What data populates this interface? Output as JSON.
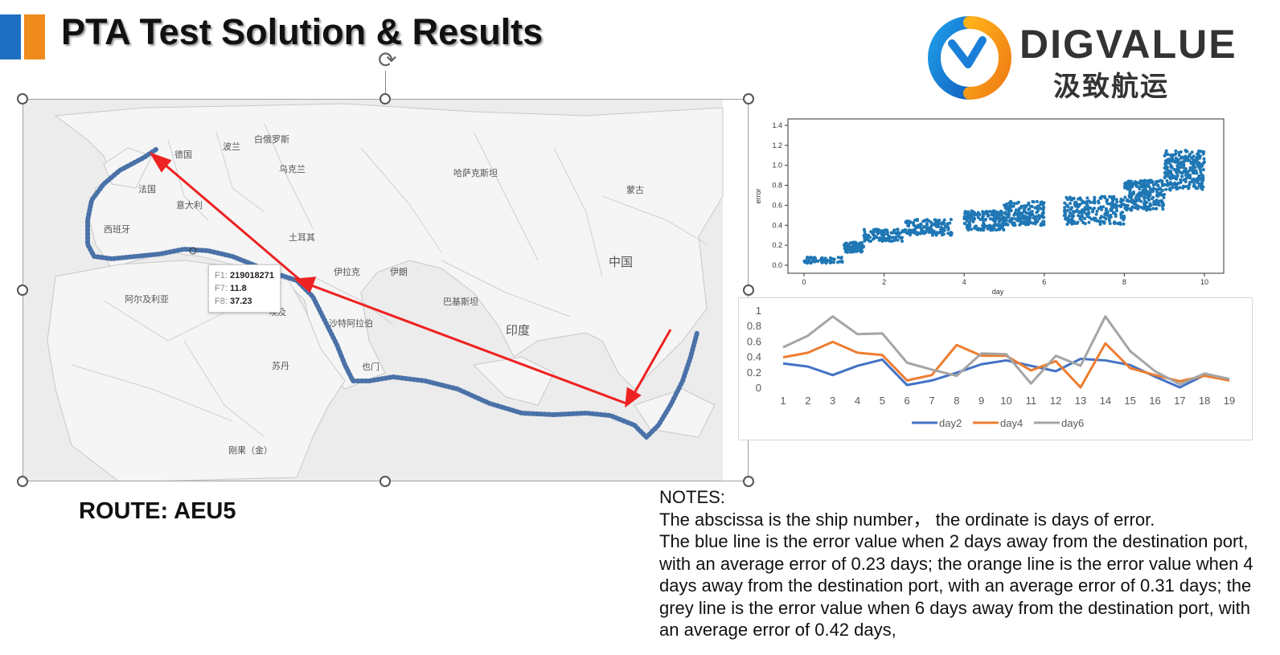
{
  "slide": {
    "title": "PTA Test Solution & Results",
    "logo_text": "DIGVALUE",
    "logo_cn": "汲致航运",
    "route_label": "ROUTE: AEU5",
    "notes": [
      "NOTES:",
      "The abscissa is the ship number， the ordinate is days of error.",
      "The blue line is the error value when 2 days away from the destination port, with an average error of 0.23 days; the orange line is the error value when 4 days away from the destination port, with an average error of 0.31 days; the grey line is the error value when 6 days away from the destination port, with an average error of 0.42 days,"
    ]
  },
  "colors": {
    "accent_blue": "#1e6fc2",
    "accent_orange": "#ef8a1c",
    "route": "#4a72a8",
    "arrow": "#ee2222"
  },
  "map": {
    "labels": [
      {
        "name": "德国",
        "id": "de"
      },
      {
        "name": "波兰",
        "id": "pl"
      },
      {
        "name": "白俄罗斯",
        "id": "by"
      },
      {
        "name": "乌克兰",
        "id": "ua"
      },
      {
        "name": "法国",
        "id": "fr"
      },
      {
        "name": "意大利",
        "id": "it"
      },
      {
        "name": "西班牙",
        "id": "es"
      },
      {
        "name": "土耳其",
        "id": "tr"
      },
      {
        "name": "哈萨克斯坦",
        "id": "kz"
      },
      {
        "name": "蒙古",
        "id": "mn"
      },
      {
        "name": "中国",
        "id": "cn"
      },
      {
        "name": "伊拉克",
        "id": "iq"
      },
      {
        "name": "伊朗",
        "id": "ir"
      },
      {
        "name": "巴基斯坦",
        "id": "pk"
      },
      {
        "name": "印度",
        "id": "in"
      },
      {
        "name": "沙特阿拉伯",
        "id": "sa"
      },
      {
        "name": "阿尔及利亚",
        "id": "dz"
      },
      {
        "name": "埃及",
        "id": "eg"
      },
      {
        "name": "苏丹",
        "id": "sd"
      },
      {
        "name": "也门",
        "id": "ye"
      },
      {
        "name": "刚果（金）",
        "id": "cd"
      }
    ],
    "tooltip": [
      {
        "key": "F1:",
        "value": "219018271"
      },
      {
        "key": "F7:",
        "value": "11.8"
      },
      {
        "key": "F8:",
        "value": "37.23"
      }
    ]
  },
  "chart_data": [
    {
      "type": "scatter",
      "xlabel": "day",
      "ylabel": "error",
      "xlim": [
        0,
        10
      ],
      "ylim": [
        0,
        1.4
      ],
      "xticks": [
        0,
        2,
        4,
        6,
        8,
        10
      ],
      "yticks": [
        0.0,
        0.2,
        0.4,
        0.6,
        0.8,
        1.0,
        1.2,
        1.4
      ],
      "clusters": [
        {
          "x_range": [
            0,
            1.0
          ],
          "y_center": 0.05,
          "y_spread": 0.03
        },
        {
          "x_range": [
            1.0,
            1.5
          ],
          "y_center": 0.18,
          "y_spread": 0.05
        },
        {
          "x_range": [
            1.5,
            2.5
          ],
          "y_center": 0.3,
          "y_spread": 0.06
        },
        {
          "x_range": [
            2.5,
            3.7
          ],
          "y_center": 0.38,
          "y_spread": 0.08
        },
        {
          "x_range": [
            4.0,
            5.0
          ],
          "y_center": 0.45,
          "y_spread": 0.1
        },
        {
          "x_range": [
            5.0,
            6.0
          ],
          "y_center": 0.52,
          "y_spread": 0.12
        },
        {
          "x_range": [
            6.5,
            8.0
          ],
          "y_center": 0.55,
          "y_spread": 0.14
        },
        {
          "x_range": [
            8.0,
            9.0
          ],
          "y_center": 0.7,
          "y_spread": 0.15
        },
        {
          "x_range": [
            9.0,
            10.0
          ],
          "y_center": 0.95,
          "y_spread": 0.2
        }
      ]
    },
    {
      "type": "line",
      "x": [
        1,
        2,
        3,
        4,
        5,
        6,
        7,
        8,
        9,
        10,
        11,
        12,
        13,
        14,
        15,
        16,
        17,
        18,
        19
      ],
      "ylim": [
        0,
        1
      ],
      "yticks": [
        "0",
        "0.2",
        "0.4",
        "0.6",
        "0.8",
        "1"
      ],
      "legend_position": "bottom",
      "series": [
        {
          "name": "day2",
          "color": "#4472c4",
          "values": [
            0.32,
            0.28,
            0.17,
            0.29,
            0.37,
            0.04,
            0.1,
            0.2,
            0.31,
            0.36,
            0.29,
            0.22,
            0.38,
            0.36,
            0.3,
            0.15,
            0.01,
            0.17,
            0.1
          ]
        },
        {
          "name": "day4",
          "color": "#ed7d31",
          "values": [
            0.4,
            0.46,
            0.6,
            0.46,
            0.43,
            0.1,
            0.17,
            0.56,
            0.42,
            0.42,
            0.23,
            0.35,
            0.01,
            0.58,
            0.26,
            0.17,
            0.09,
            0.16,
            0.1
          ]
        },
        {
          "name": "day6",
          "color": "#a5a5a5",
          "values": [
            0.53,
            0.68,
            0.93,
            0.7,
            0.71,
            0.33,
            0.24,
            0.16,
            0.45,
            0.44,
            0.06,
            0.42,
            0.29,
            0.93,
            0.48,
            0.22,
            0.05,
            0.19,
            0.12
          ]
        }
      ]
    }
  ]
}
